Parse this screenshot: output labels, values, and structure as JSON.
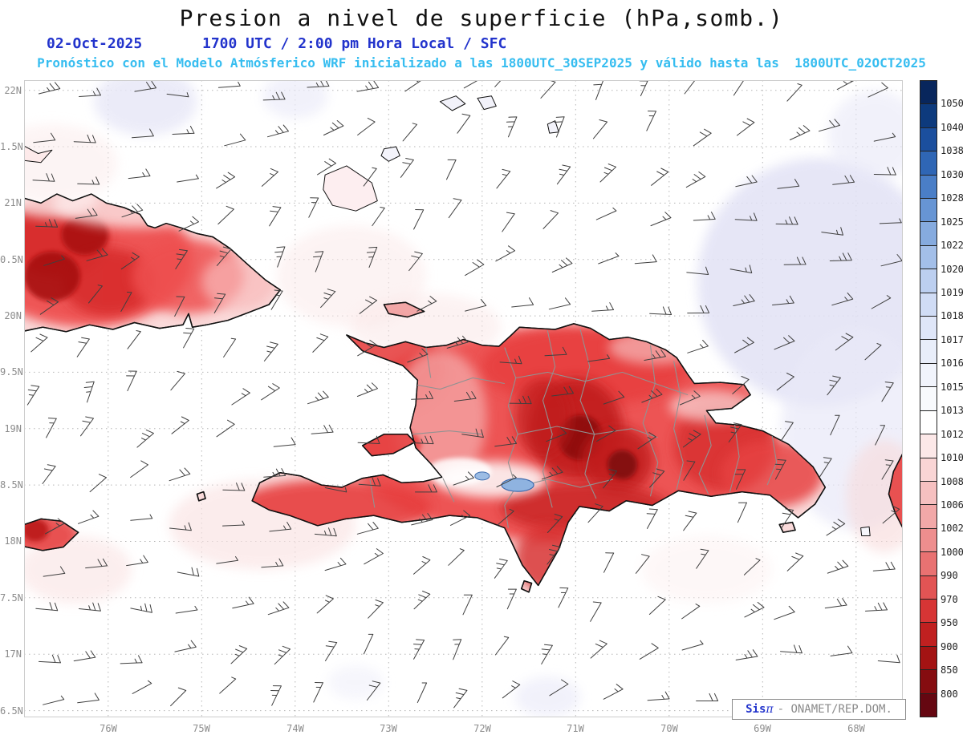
{
  "title": "Presion a nivel de superficie (hPa,somb.)",
  "header": {
    "date": "02-Oct-2025",
    "valid_time": "1700 UTC / 2:00 pm Hora Local / SFC",
    "model_line": "Pronóstico con el Modelo Atmósferico WRF inicializado a las 1800UTC_30SEP2025 y válido hasta las  1800UTC_02OCT2025"
  },
  "credit": {
    "product": "Sis",
    "pi": "π",
    "org_text": "- ONAMET/REP.DOM."
  },
  "colors": {
    "title": "#111111",
    "header_blue": "#2233cc",
    "header_cyan": "#36bdf0",
    "axis_label": "#8c8c8c"
  },
  "axes": {
    "lat_ticks": [
      {
        "label": "22N",
        "value": 22
      },
      {
        "label": "1.5N",
        "value": 21.5
      },
      {
        "label": "21N",
        "value": 21
      },
      {
        "label": "0.5N",
        "value": 20.5
      },
      {
        "label": "20N",
        "value": 20
      },
      {
        "label": "9.5N",
        "value": 19.5
      },
      {
        "label": "19N",
        "value": 19
      },
      {
        "label": "8.5N",
        "value": 18.5
      },
      {
        "label": "18N",
        "value": 18
      },
      {
        "label": "7.5N",
        "value": 17.5
      },
      {
        "label": "17N",
        "value": 17
      },
      {
        "label": "6.5N",
        "value": 16.5
      }
    ],
    "lon_ticks": [
      {
        "label": "76W",
        "value": -76
      },
      {
        "label": "75W",
        "value": -75
      },
      {
        "label": "74W",
        "value": -74
      },
      {
        "label": "73W",
        "value": -73
      },
      {
        "label": "72W",
        "value": -72
      },
      {
        "label": "71W",
        "value": -71
      },
      {
        "label": "70W",
        "value": -70
      },
      {
        "label": "69W",
        "value": -69
      },
      {
        "label": "68W",
        "value": -68
      }
    ]
  },
  "colorbar": {
    "tick_labels": [
      "1050",
      "1040",
      "1038",
      "1030",
      "1028",
      "1025",
      "1022",
      "1020",
      "1019",
      "1018",
      "1017",
      "1016",
      "1015",
      "1013",
      "1012",
      "1010",
      "1008",
      "1006",
      "1002",
      "1000",
      "990",
      "970",
      "950",
      "900",
      "850",
      "800"
    ],
    "colors_top_to_bottom": [
      "#08265c",
      "#0d3a7d",
      "#1b4f9e",
      "#2f66b5",
      "#4a7ec7",
      "#6795d4",
      "#86abdf",
      "#a3bfe9",
      "#bccff0",
      "#d0dcf5",
      "#dfe6f8",
      "#e9eefa",
      "#f1f4fc",
      "#f8fafd",
      "#ffffff",
      "#fce8e8",
      "#f9d5d5",
      "#f6c0c0",
      "#f2a8a8",
      "#ee8e8e",
      "#e97272",
      "#e25454",
      "#d73535",
      "#c02020",
      "#a31313",
      "#850c10",
      "#650711"
    ]
  },
  "chart_data": {
    "type": "heatmap",
    "subtype": "surface_pressure_filled_contour_map_with_wind_barbs",
    "variable": "Presion a nivel de superficie (hPa, sombreado)",
    "model": "WRF",
    "initialized": "1800UTC_30SEP2025",
    "valid_until": "1800UTC_02OCT2025",
    "region": "Hispaniola, eastern Cuba, Jamaica, Turks and Caicos",
    "lon_range_deg_west": [
      76.9,
      67.5
    ],
    "lat_range_deg_north": [
      16.5,
      22.1
    ],
    "grid_on": true,
    "levels_hpa": [
      1050,
      1040,
      1038,
      1030,
      1028,
      1025,
      1022,
      1020,
      1019,
      1018,
      1017,
      1016,
      1015,
      1013,
      1012,
      1010,
      1008,
      1006,
      1002,
      1000,
      990,
      970,
      950,
      900,
      850,
      800
    ],
    "legend_position": "right-colorbar",
    "features": [
      {
        "name": "terrain-low-pressure-core",
        "location_lon_w": 70.95,
        "location_lat_n": 18.95,
        "approx_hpa": 990,
        "note": "darkest shading over central Dominican Republic cordillera"
      },
      {
        "name": "secondary-low-core",
        "location_lon_w": 70.55,
        "location_lat_n": 18.7,
        "approx_hpa": 1000
      },
      {
        "name": "low-pressure-eastern-cuba",
        "location_lon_w": 76.3,
        "location_lat_n": 20.5,
        "approx_hpa": 1002
      },
      {
        "name": "weak-high-ridge",
        "location_lon_w": 68.5,
        "location_lat_n": 20.3,
        "approx_hpa": 1016,
        "note": "pale lavender shading over Atlantic east of Hispaniola"
      },
      {
        "name": "ocean-background",
        "approx_hpa": 1014
      }
    ],
    "wind_barbs": {
      "present": true,
      "regime": "light easterly trade winds",
      "approx_speed_kt": "5-15"
    },
    "lakes": [
      {
        "name": "Lago Enriquillo",
        "lon_w": 71.62,
        "lat_n": 18.5
      }
    ]
  }
}
